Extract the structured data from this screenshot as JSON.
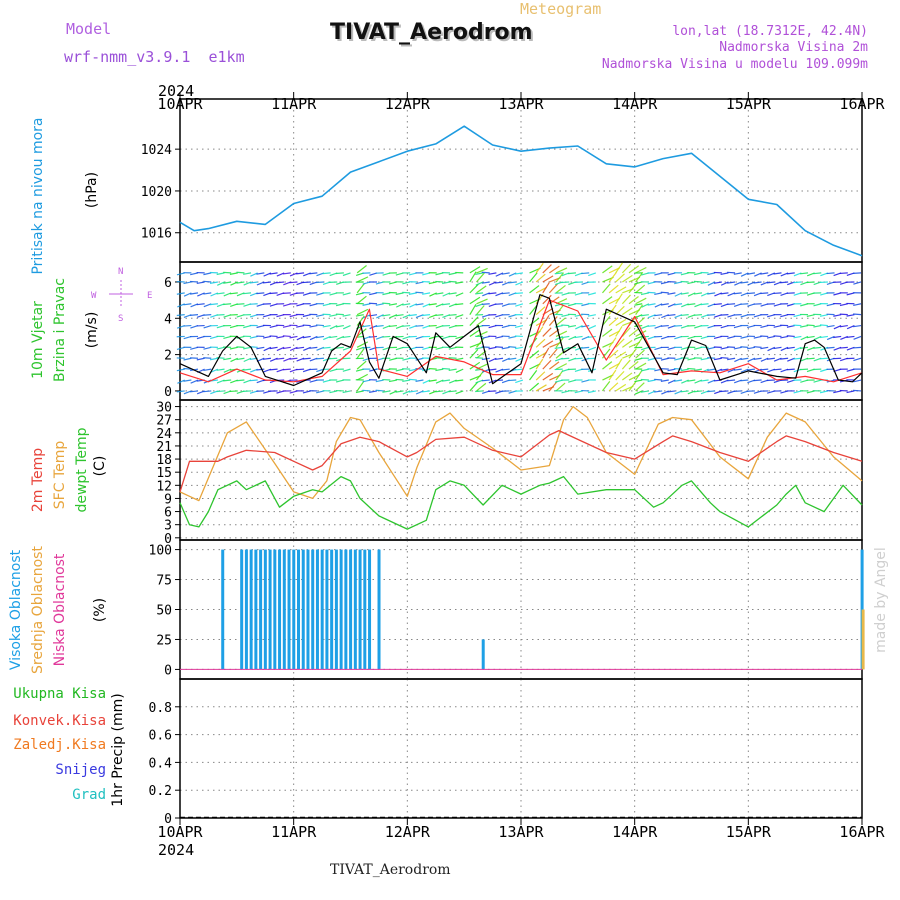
{
  "header": {
    "model_label": "Model",
    "model_name": "wrf-nmm_v3.9.1  e1km",
    "product": "Meteogram",
    "station": "TIVAT_Aerodrom",
    "lonlat": "lon,lat (18.7312E, 42.4N)",
    "elevation": "Nadmorska Visina 2m",
    "model_elevation": "Nadmorska Visina u modelu 109.099m",
    "footer_station": "TIVAT_Aerodrom",
    "credit": "made by Angel"
  },
  "colors": {
    "pressure": "#1e9be0",
    "temp2m": "#e8433a",
    "sfc_temp": "#e8a53c",
    "dewpoint": "#2ec42e",
    "high_cloud": "#1ea0e6",
    "mid_cloud": "#e8b84a",
    "low_cloud": "#e0389a",
    "wind_speed": "#000000",
    "wind_gust": "#ff3030",
    "total_precip": "#22b822",
    "conv_precip": "#e8433a",
    "frozen_precip": "#f07a20",
    "snow": "#3a3ae0",
    "hail": "#20c0c0",
    "grid": "#888888"
  },
  "chart_data": [
    {
      "type": "line",
      "id": "pressure",
      "ylabel": [
        "Pritisak na nivou mora",
        "(hPa)"
      ],
      "x_start": "2024-04-10 00:00",
      "x_end": "2024-04-16 00:00",
      "x_ticks": [
        "10APR",
        "11APR",
        "12APR",
        "13APR",
        "14APR",
        "15APR",
        "16APR"
      ],
      "year_label": "2024",
      "ylim": [
        1013.2,
        1028.8
      ],
      "yticks": [
        1016,
        1020,
        1024
      ],
      "grid": true,
      "series": [
        {
          "x_hours": [
            0,
            3,
            6,
            12,
            18,
            24,
            30,
            36,
            42,
            48,
            54,
            60,
            66,
            72,
            78,
            84,
            90,
            96,
            102,
            108,
            114,
            120,
            126,
            132,
            138,
            144
          ],
          "values": [
            1017,
            1016.2,
            1016.4,
            1017.1,
            1016.8,
            1018.8,
            1019.5,
            1021.8,
            1022.8,
            1023.8,
            1024.5,
            1026.2,
            1024.4,
            1023.8,
            1024.1,
            1024.3,
            1022.6,
            1022.3,
            1023.1,
            1023.6,
            1021.4,
            1019.2,
            1018.7,
            1016.2,
            1014.8,
            1013.8
          ]
        }
      ]
    },
    {
      "type": "line",
      "id": "wind",
      "ylabel": [
        "10m Vjetar",
        "Brzina i Pravac",
        "(m/s)"
      ],
      "compass": {
        "n": "N",
        "s": "S",
        "e": "E",
        "w": "W"
      },
      "ylim": [
        -0.5,
        7.1
      ],
      "yticks": [
        0,
        2,
        4,
        6
      ],
      "grid": true,
      "series": [
        {
          "name": "speed",
          "x_hours": [
            0,
            6,
            9,
            12,
            15,
            18,
            24,
            30,
            32,
            34,
            36,
            38,
            40,
            42,
            45,
            48,
            52,
            54,
            57,
            60,
            63,
            66,
            72,
            76,
            78,
            81,
            84,
            87,
            90,
            96,
            102,
            105,
            108,
            111,
            114,
            120,
            126,
            130,
            132,
            134,
            136,
            139,
            142,
            144
          ],
          "values": [
            1.5,
            0.8,
            2.2,
            3.0,
            2.4,
            0.8,
            0.3,
            1.0,
            2.2,
            2.6,
            2.4,
            3.8,
            1.6,
            0.7,
            3.0,
            2.6,
            1.0,
            3.2,
            2.4,
            3.0,
            3.6,
            0.4,
            1.5,
            5.3,
            5.1,
            2.1,
            2.6,
            1.0,
            4.5,
            3.8,
            1.0,
            0.9,
            2.8,
            2.5,
            0.6,
            1.1,
            0.8,
            0.7,
            2.6,
            2.8,
            2.4,
            0.6,
            0.5,
            1.0
          ]
        },
        {
          "name": "gust",
          "x_hours": [
            0,
            6,
            12,
            18,
            24,
            30,
            36,
            40,
            42,
            48,
            54,
            60,
            66,
            72,
            78,
            84,
            90,
            96,
            102,
            108,
            114,
            120,
            126,
            132,
            138,
            144
          ],
          "values": [
            1.0,
            0.5,
            1.2,
            0.6,
            0.5,
            0.8,
            2.2,
            4.5,
            1.2,
            0.8,
            1.9,
            1.6,
            0.9,
            0.9,
            5.0,
            4.4,
            1.7,
            4.1,
            0.9,
            1.1,
            1.0,
            1.5,
            0.6,
            0.8,
            0.5,
            1.0
          ]
        }
      ]
    },
    {
      "type": "line",
      "id": "temperature",
      "ylabel": [
        "2m Temp",
        "SFC Temp",
        "dewpt Temp",
        "(C)"
      ],
      "ylim": [
        -0.5,
        31.5
      ],
      "yticks": [
        0,
        3,
        6,
        9,
        12,
        15,
        18,
        21,
        24,
        27,
        30
      ],
      "grid": true,
      "series": [
        {
          "name": "2m Temp",
          "x_hours": [
            0,
            2,
            8,
            10,
            14,
            20,
            24,
            28,
            30,
            34,
            38,
            42,
            48,
            50,
            54,
            60,
            66,
            72,
            78,
            80,
            84,
            90,
            96,
            102,
            104,
            108,
            114,
            120,
            126,
            128,
            132,
            138,
            144
          ],
          "values": [
            10.5,
            17.5,
            17.5,
            18.5,
            20,
            19.5,
            17.5,
            15.5,
            16.5,
            21.5,
            23,
            22,
            18.5,
            19.5,
            22.5,
            23,
            20,
            18.5,
            23.5,
            24.5,
            22.5,
            19.5,
            18,
            22,
            23.3,
            22,
            19.5,
            17.5,
            22,
            23.3,
            22,
            19.5,
            17.5
          ]
        },
        {
          "name": "SFC Temp",
          "x_hours": [
            0,
            2,
            4,
            10,
            14,
            20,
            24,
            28,
            31,
            33,
            36,
            38,
            42,
            48,
            50,
            54,
            57,
            60,
            66,
            72,
            78,
            81,
            83,
            86,
            90,
            96,
            101,
            104,
            108,
            114,
            120,
            124,
            128,
            132,
            138,
            144
          ],
          "values": [
            10.5,
            9.5,
            8.5,
            24,
            26.5,
            17,
            10.5,
            9,
            13,
            22,
            27.5,
            27,
            19.5,
            9.5,
            16,
            26.5,
            28.5,
            25,
            20.5,
            15.5,
            16.5,
            27,
            30,
            27.5,
            19.5,
            14.5,
            26,
            27.5,
            27,
            18.5,
            13.5,
            23,
            28.5,
            26.5,
            18.5,
            13
          ]
        },
        {
          "name": "dewpt Temp",
          "x_hours": [
            0,
            2,
            4,
            6,
            8,
            12,
            14,
            18,
            21,
            24,
            28,
            30,
            34,
            36,
            38,
            42,
            48,
            52,
            54,
            57,
            60,
            64,
            68,
            72,
            76,
            78,
            81,
            84,
            90,
            96,
            100,
            102,
            106,
            108,
            112,
            114,
            120,
            126,
            128,
            130,
            132,
            136,
            140,
            144
          ],
          "values": [
            8,
            3,
            2.5,
            6,
            11,
            13,
            11,
            13,
            7,
            9.5,
            11,
            10.5,
            14,
            13,
            9,
            5,
            2,
            4,
            11,
            13,
            12,
            7.5,
            12,
            10,
            12,
            12.5,
            14,
            10,
            11,
            11,
            7,
            8,
            12,
            13,
            8,
            6,
            2.5,
            7.5,
            10,
            12,
            8,
            6,
            12,
            7.5
          ]
        }
      ]
    },
    {
      "type": "bar",
      "id": "cloud",
      "ylabel": [
        "Visoka Oblacnost",
        "Srednja Oblacnost",
        "Niska Oblacnost",
        "(%)"
      ],
      "ylim": [
        -8,
        108
      ],
      "yticks": [
        0,
        25,
        50,
        75,
        100
      ],
      "grid": true,
      "series": [
        {
          "name": "Visoka Oblacnost",
          "x_hours": [
            9,
            13,
            14,
            15,
            16,
            17,
            18,
            19,
            20,
            21,
            22,
            23,
            24,
            25,
            26,
            27,
            28,
            29,
            30,
            31,
            32,
            33,
            34,
            35,
            36,
            37,
            38,
            39,
            40,
            42,
            64,
            144
          ],
          "values": [
            100,
            100,
            100,
            100,
            100,
            100,
            100,
            100,
            100,
            100,
            100,
            100,
            100,
            100,
            100,
            100,
            100,
            100,
            100,
            100,
            100,
            100,
            100,
            100,
            100,
            100,
            100,
            100,
            100,
            100,
            25,
            100
          ]
        },
        {
          "name": "Srednja Oblacnost",
          "x_hours": [
            144
          ],
          "values": [
            50
          ]
        },
        {
          "name": "Niska Oblacnost",
          "x_hours": [
            0,
            144
          ],
          "values": [
            0,
            0
          ]
        }
      ]
    },
    {
      "type": "bar",
      "id": "precip",
      "ylabel": [
        "1hr Precip (mm)"
      ],
      "legend": [
        "Ukupna Kisa",
        "Konvek.Kisa",
        "Zaledj.Kisa",
        "Snijeg",
        "Grad"
      ],
      "ylim": [
        0,
        1.0
      ],
      "yticks": [
        0,
        0.2,
        0.4,
        0.6,
        0.8
      ],
      "grid": true,
      "series": [
        {
          "name": "Ukupna Kisa",
          "x_hours": [
            0,
            144
          ],
          "values": [
            0,
            0
          ]
        }
      ]
    }
  ]
}
